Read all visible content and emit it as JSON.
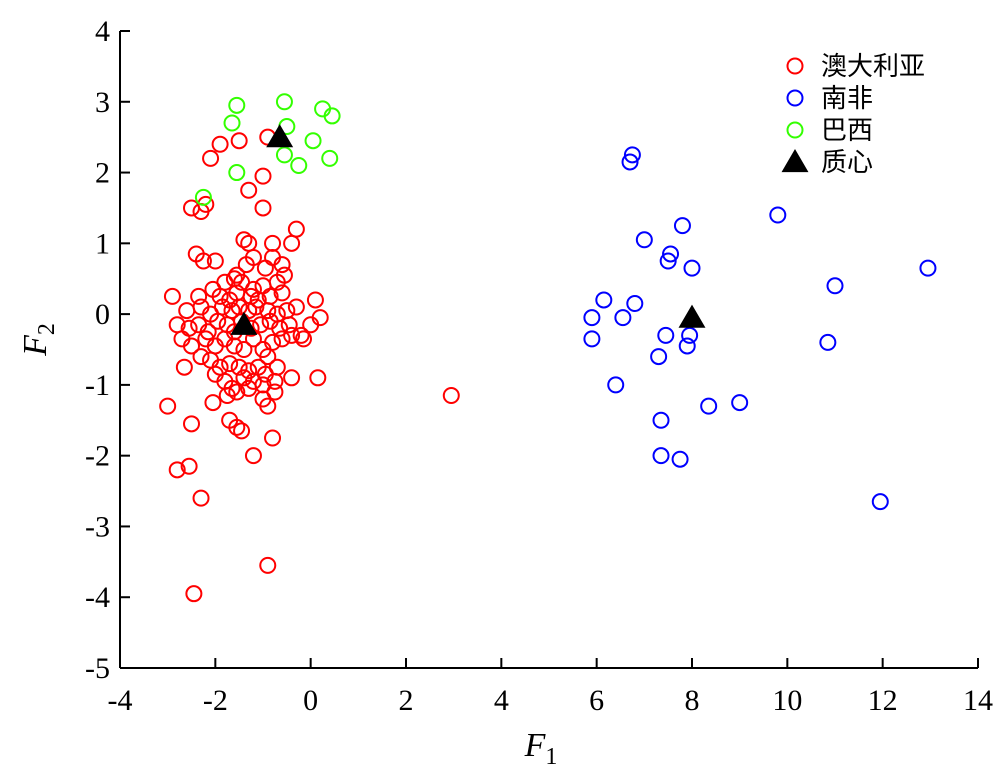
{
  "chart_data": {
    "type": "scatter",
    "title": "",
    "xlabel": {
      "main": "F",
      "sub": "1"
    },
    "ylabel": {
      "main": "F",
      "sub": "2"
    },
    "xlim": [
      -4,
      14
    ],
    "ylim": [
      -5,
      4
    ],
    "xticks": [
      "-4",
      "-2",
      "0",
      "2",
      "4",
      "6",
      "8",
      "10",
      "12",
      "14"
    ],
    "yticks": [
      "-5",
      "-4",
      "-3",
      "-2",
      "-1",
      "0",
      "1",
      "2",
      "3",
      "4"
    ],
    "grid": false,
    "legend_position": "top-right",
    "series": [
      {
        "name": "澳大利亚",
        "marker": "open-circle",
        "color": "#ff0000",
        "points": [
          [
            -2.1,
            2.2
          ],
          [
            -1.9,
            2.4
          ],
          [
            -1.5,
            2.45
          ],
          [
            -0.9,
            2.5
          ],
          [
            -2.2,
            1.55
          ],
          [
            -2.5,
            1.5
          ],
          [
            -2.3,
            1.45
          ],
          [
            -1.3,
            1.75
          ],
          [
            -1.0,
            1.95
          ],
          [
            -1.0,
            1.5
          ],
          [
            -0.3,
            1.2
          ],
          [
            -1.4,
            1.05
          ],
          [
            -1.3,
            1.0
          ],
          [
            -0.8,
            1.0
          ],
          [
            -0.4,
            1.0
          ],
          [
            -2.4,
            0.85
          ],
          [
            -2.25,
            0.75
          ],
          [
            -2.0,
            0.75
          ],
          [
            -1.2,
            0.8
          ],
          [
            -0.8,
            0.8
          ],
          [
            -1.55,
            0.55
          ],
          [
            -1.35,
            0.7
          ],
          [
            -0.95,
            0.65
          ],
          [
            -0.6,
            0.7
          ],
          [
            -1.8,
            0.45
          ],
          [
            -1.6,
            0.5
          ],
          [
            -1.45,
            0.45
          ],
          [
            -1.2,
            0.35
          ],
          [
            -1.0,
            0.4
          ],
          [
            -0.7,
            0.45
          ],
          [
            -0.55,
            0.55
          ],
          [
            -2.9,
            0.25
          ],
          [
            -2.35,
            0.25
          ],
          [
            -2.05,
            0.35
          ],
          [
            -1.9,
            0.25
          ],
          [
            -1.7,
            0.2
          ],
          [
            -1.55,
            0.3
          ],
          [
            -1.25,
            0.25
          ],
          [
            -1.1,
            0.2
          ],
          [
            -0.85,
            0.25
          ],
          [
            -0.6,
            0.3
          ],
          [
            -0.3,
            0.1
          ],
          [
            0.1,
            0.2
          ],
          [
            -2.6,
            0.05
          ],
          [
            -2.3,
            0.1
          ],
          [
            -2.1,
            0.0
          ],
          [
            -1.85,
            0.1
          ],
          [
            -1.65,
            0.05
          ],
          [
            -1.5,
            0.1
          ],
          [
            -1.3,
            0.05
          ],
          [
            -1.15,
            0.1
          ],
          [
            -0.9,
            0.05
          ],
          [
            -0.7,
            0.0
          ],
          [
            -0.5,
            0.05
          ],
          [
            0.2,
            -0.05
          ],
          [
            -2.8,
            -0.15
          ],
          [
            -2.55,
            -0.2
          ],
          [
            -2.35,
            -0.15
          ],
          [
            -2.15,
            -0.25
          ],
          [
            -1.95,
            -0.1
          ],
          [
            -1.75,
            -0.15
          ],
          [
            -1.6,
            -0.25
          ],
          [
            -1.45,
            -0.1
          ],
          [
            -1.25,
            -0.2
          ],
          [
            -1.05,
            -0.15
          ],
          [
            -0.85,
            -0.1
          ],
          [
            -0.65,
            -0.2
          ],
          [
            -0.45,
            -0.15
          ],
          [
            -0.2,
            -0.3
          ],
          [
            0.0,
            -0.15
          ],
          [
            -2.7,
            -0.35
          ],
          [
            -2.5,
            -0.45
          ],
          [
            -2.2,
            -0.35
          ],
          [
            -2.0,
            -0.45
          ],
          [
            -1.8,
            -0.35
          ],
          [
            -1.6,
            -0.45
          ],
          [
            -1.4,
            -0.5
          ],
          [
            -1.2,
            -0.35
          ],
          [
            -1.0,
            -0.5
          ],
          [
            -0.8,
            -0.4
          ],
          [
            -0.6,
            -0.35
          ],
          [
            -0.4,
            -0.3
          ],
          [
            -0.15,
            -0.35
          ],
          [
            -2.3,
            -0.6
          ],
          [
            -2.1,
            -0.65
          ],
          [
            -1.9,
            -0.75
          ],
          [
            -1.7,
            -0.7
          ],
          [
            -1.5,
            -0.75
          ],
          [
            -1.3,
            -0.8
          ],
          [
            -1.1,
            -0.75
          ],
          [
            -0.9,
            -0.6
          ],
          [
            -0.7,
            -0.75
          ],
          [
            -2.65,
            -0.75
          ],
          [
            -2.0,
            -0.85
          ],
          [
            -1.8,
            -0.95
          ],
          [
            -1.4,
            -0.9
          ],
          [
            -1.2,
            -0.95
          ],
          [
            -0.95,
            -0.85
          ],
          [
            -0.75,
            -0.95
          ],
          [
            -0.4,
            -0.9
          ],
          [
            0.15,
            -0.9
          ],
          [
            -1.65,
            -1.05
          ],
          [
            -1.3,
            -1.05
          ],
          [
            -1.0,
            -1.0
          ],
          [
            -1.75,
            -1.15
          ],
          [
            -1.55,
            -1.1
          ],
          [
            -0.75,
            -1.1
          ],
          [
            -2.05,
            -1.25
          ],
          [
            -1.0,
            -1.2
          ],
          [
            -0.9,
            -1.3
          ],
          [
            -3.0,
            -1.3
          ],
          [
            -1.7,
            -1.5
          ],
          [
            -1.55,
            -1.6
          ],
          [
            -1.45,
            -1.65
          ],
          [
            -2.5,
            -1.55
          ],
          [
            -0.8,
            -1.75
          ],
          [
            -1.2,
            -2.0
          ],
          [
            -2.55,
            -2.15
          ],
          [
            -2.8,
            -2.2
          ],
          [
            -2.3,
            -2.6
          ],
          [
            -0.9,
            -3.55
          ],
          [
            -2.45,
            -3.95
          ],
          [
            2.95,
            -1.15
          ]
        ]
      },
      {
        "name": "南非",
        "marker": "open-circle",
        "color": "#0000ff",
        "points": [
          [
            6.75,
            2.25
          ],
          [
            6.7,
            2.15
          ],
          [
            9.8,
            1.4
          ],
          [
            7.8,
            1.25
          ],
          [
            7.0,
            1.05
          ],
          [
            7.55,
            0.85
          ],
          [
            7.5,
            0.75
          ],
          [
            8.0,
            0.65
          ],
          [
            12.95,
            0.65
          ],
          [
            11.0,
            0.4
          ],
          [
            6.15,
            0.2
          ],
          [
            6.8,
            0.15
          ],
          [
            5.9,
            -0.05
          ],
          [
            6.55,
            -0.05
          ],
          [
            5.9,
            -0.35
          ],
          [
            7.45,
            -0.3
          ],
          [
            7.95,
            -0.3
          ],
          [
            7.9,
            -0.45
          ],
          [
            10.85,
            -0.4
          ],
          [
            7.3,
            -0.6
          ],
          [
            6.4,
            -1.0
          ],
          [
            9.0,
            -1.25
          ],
          [
            8.35,
            -1.3
          ],
          [
            7.35,
            -1.5
          ],
          [
            7.35,
            -2.0
          ],
          [
            7.75,
            -2.05
          ],
          [
            11.95,
            -2.65
          ]
        ]
      },
      {
        "name": "巴西",
        "marker": "open-circle",
        "color": "#33ff00",
        "points": [
          [
            -1.55,
            2.95
          ],
          [
            -0.55,
            3.0
          ],
          [
            -1.65,
            2.7
          ],
          [
            -0.5,
            2.65
          ],
          [
            0.25,
            2.9
          ],
          [
            0.45,
            2.8
          ],
          [
            0.05,
            2.45
          ],
          [
            -0.55,
            2.25
          ],
          [
            -0.25,
            2.1
          ],
          [
            0.4,
            2.2
          ],
          [
            -1.55,
            2.0
          ],
          [
            -2.25,
            1.65
          ]
        ]
      },
      {
        "name": "质心",
        "marker": "filled-triangle",
        "color": "#000000",
        "points": [
          [
            -0.65,
            2.5
          ],
          [
            -1.4,
            -0.15
          ],
          [
            8.0,
            -0.05
          ]
        ]
      }
    ]
  }
}
